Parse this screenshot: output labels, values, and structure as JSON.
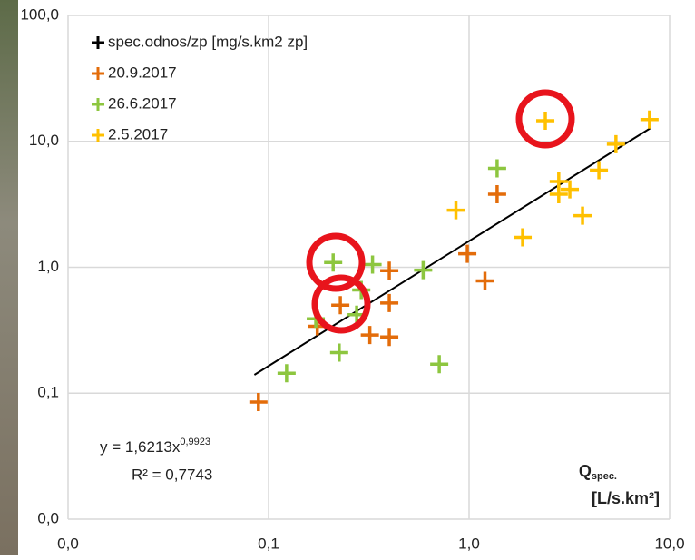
{
  "chart_data": {
    "type": "scatter",
    "log_x": true,
    "log_y": true,
    "grid": true,
    "xlim": [
      0.01,
      10
    ],
    "ylim": [
      0.01,
      100
    ],
    "xticks": [
      {
        "value": 0.01,
        "label": "0,0"
      },
      {
        "value": 0.1,
        "label": "0,1"
      },
      {
        "value": 1,
        "label": "1,0"
      },
      {
        "value": 10,
        "label": "10,0"
      }
    ],
    "yticks": [
      {
        "value": 0.01,
        "label": "0,0"
      },
      {
        "value": 0.1,
        "label": "0,1"
      },
      {
        "value": 1,
        "label": "1,0"
      },
      {
        "value": 10,
        "label": "10,0"
      },
      {
        "value": 100,
        "label": "100,0"
      }
    ],
    "x_label": {
      "main": "Q",
      "sub": "spec.",
      "unit": "[L/s.km²]"
    },
    "legend": "top-left",
    "series": [
      {
        "name": "spec.odnos/zp [mg/s.km2 zp]",
        "color": "#000000"
      },
      {
        "name": "20.9.2017",
        "color": "#e36c0a",
        "x": [
          0.089,
          0.175,
          0.228,
          0.32,
          0.4,
          0.4,
          0.4,
          0.98,
          1.38,
          1.2
        ],
        "values": [
          0.085,
          0.34,
          0.5,
          0.29,
          0.28,
          0.52,
          0.94,
          1.28,
          3.8,
          0.78
        ]
      },
      {
        "name": "26.6.2017",
        "color": "#8dc63f",
        "x": [
          0.123,
          0.172,
          0.21,
          0.225,
          0.29,
          0.275,
          0.33,
          0.59,
          0.71,
          1.38
        ],
        "values": [
          0.144,
          0.39,
          1.09,
          0.21,
          0.66,
          0.42,
          1.05,
          0.95,
          0.17,
          6.1
        ]
      },
      {
        "name": "2.5.2017",
        "color": "#ffc000",
        "x": [
          0.86,
          1.85,
          2.4,
          2.8,
          2.8,
          3.18,
          3.68,
          4.44,
          5.4,
          7.94
        ],
        "values": [
          2.84,
          1.73,
          14.6,
          4.8,
          3.8,
          4.16,
          2.57,
          5.9,
          9.5,
          14.9
        ]
      }
    ],
    "trendline": {
      "color": "#000000",
      "x": [
        0.085,
        8.0
      ],
      "values": [
        0.14,
        12.7
      ],
      "equation": "y = 1,6213x",
      "exponent": "0,9923",
      "r2": "R² = 0,7743"
    }
  }
}
